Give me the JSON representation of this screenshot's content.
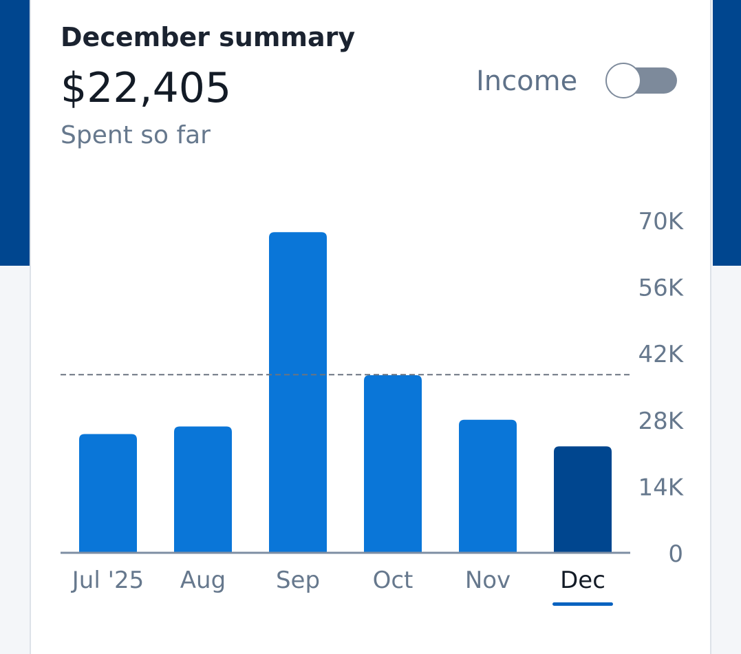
{
  "summary": {
    "title": "December summary",
    "amount": "$22,405",
    "subtitle": "Spent so far"
  },
  "toggle": {
    "label": "Income",
    "on": false
  },
  "colors": {
    "bar": "#0a76d8",
    "bar_selected": "#00468f",
    "axis": "#7d8ea3",
    "average_line": "#6b7480",
    "tab_underline": "#0a63c0"
  },
  "chart_data": {
    "type": "bar",
    "categories": [
      "Jul '25",
      "Aug",
      "Sep",
      "Oct",
      "Nov",
      "Dec"
    ],
    "values": [
      25000,
      26600,
      67500,
      37400,
      28000,
      22405
    ],
    "selected": "Dec",
    "ylim": [
      0,
      70000
    ],
    "yticks": [
      0,
      14000,
      28000,
      42000,
      56000,
      70000
    ],
    "ytick_labels": [
      "0",
      "14K",
      "28K",
      "42K",
      "56K",
      "70K"
    ],
    "y_axis_position": "right",
    "reference_line": {
      "style": "dashed",
      "value": 37500
    },
    "grid": false
  }
}
